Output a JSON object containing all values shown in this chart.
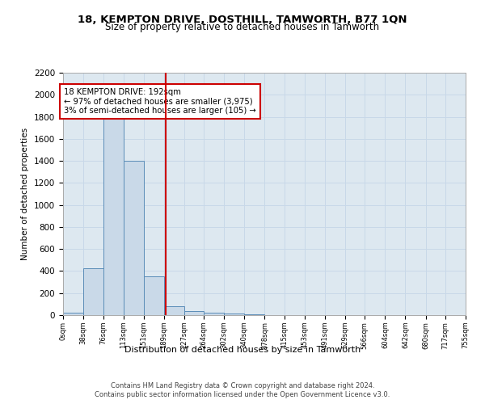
{
  "title_line1": "18, KEMPTON DRIVE, DOSTHILL, TAMWORTH, B77 1QN",
  "title_line2": "Size of property relative to detached houses in Tamworth",
  "xlabel": "Distribution of detached houses by size in Tamworth",
  "ylabel": "Number of detached properties",
  "footer_line1": "Contains HM Land Registry data © Crown copyright and database right 2024.",
  "footer_line2": "Contains public sector information licensed under the Open Government Licence v3.0.",
  "annotation_title": "18 KEMPTON DRIVE: 192sqm",
  "annotation_line1": "← 97% of detached houses are smaller (3,975)",
  "annotation_line2": "3% of semi-detached houses are larger (105) →",
  "property_sqm": 192,
  "bar_edges": [
    0,
    38,
    76,
    113,
    151,
    189,
    227,
    264,
    302,
    340,
    378,
    415,
    453,
    491,
    529,
    566,
    604,
    642,
    680,
    717,
    755
  ],
  "bar_heights": [
    20,
    425,
    1800,
    1400,
    350,
    80,
    35,
    25,
    15,
    5,
    2,
    1,
    1,
    0,
    0,
    0,
    0,
    0,
    0,
    0
  ],
  "bar_color": "#c9d9e8",
  "bar_edge_color": "#5b8db8",
  "vline_color": "#cc0000",
  "vline_x": 192,
  "annotation_box_color": "#cc0000",
  "annotation_bg": "#ffffff",
  "grid_color": "#c8d8e8",
  "bg_color": "#dde8f0",
  "fig_bg_color": "#ffffff",
  "ylim": [
    0,
    2200
  ],
  "yticks": [
    0,
    200,
    400,
    600,
    800,
    1000,
    1200,
    1400,
    1600,
    1800,
    2000,
    2200
  ]
}
